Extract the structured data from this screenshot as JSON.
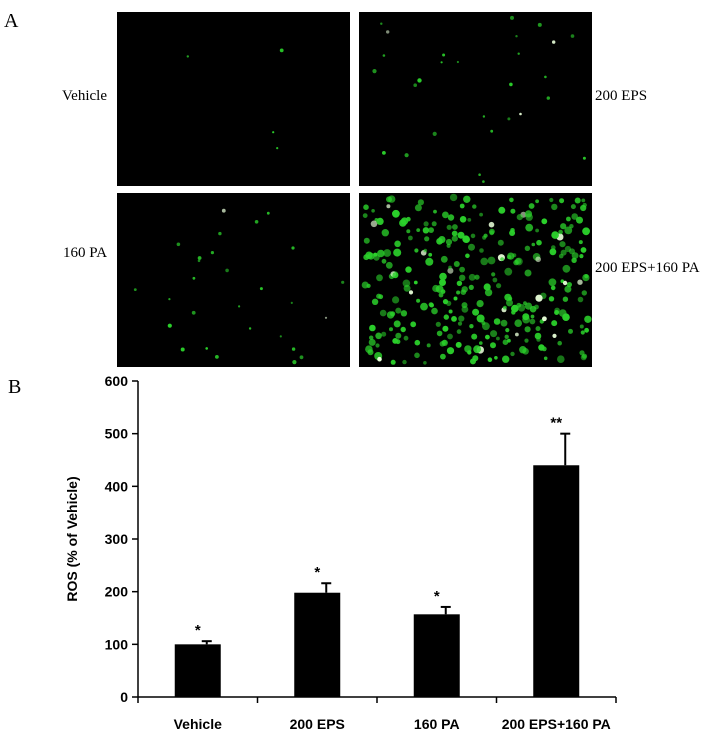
{
  "panel_a": {
    "letter": "A",
    "images": [
      {
        "label": "Vehicle",
        "cell_density": "very-low",
        "cell_color": "#2bd12b"
      },
      {
        "label": "200 EPS",
        "cell_density": "low",
        "cell_color": "#2bd12b"
      },
      {
        "label": "160 PA",
        "cell_density": "low",
        "cell_color": "#2bd12b"
      },
      {
        "label": "200 EPS+160 PA",
        "cell_density": "high",
        "cell_color": "#2bd12b"
      }
    ]
  },
  "panel_b": {
    "letter": "B"
  },
  "chart_data": {
    "type": "bar",
    "title": "",
    "xlabel": "",
    "ylabel": "ROS (% of Vehicle)",
    "categories": [
      "Vehicle",
      "200 EPS",
      "160 PA",
      "200 EPS+160 PA"
    ],
    "values": [
      100,
      198,
      157,
      440
    ],
    "errors": [
      6,
      18,
      14,
      60
    ],
    "significance": [
      "*",
      "*",
      "*",
      "**"
    ],
    "ylim": [
      0,
      600
    ],
    "yticks": [
      "0",
      "100",
      "200",
      "300",
      "400",
      "500",
      "600"
    ],
    "bar_color": "#000000",
    "grid": false,
    "legend": "none"
  }
}
